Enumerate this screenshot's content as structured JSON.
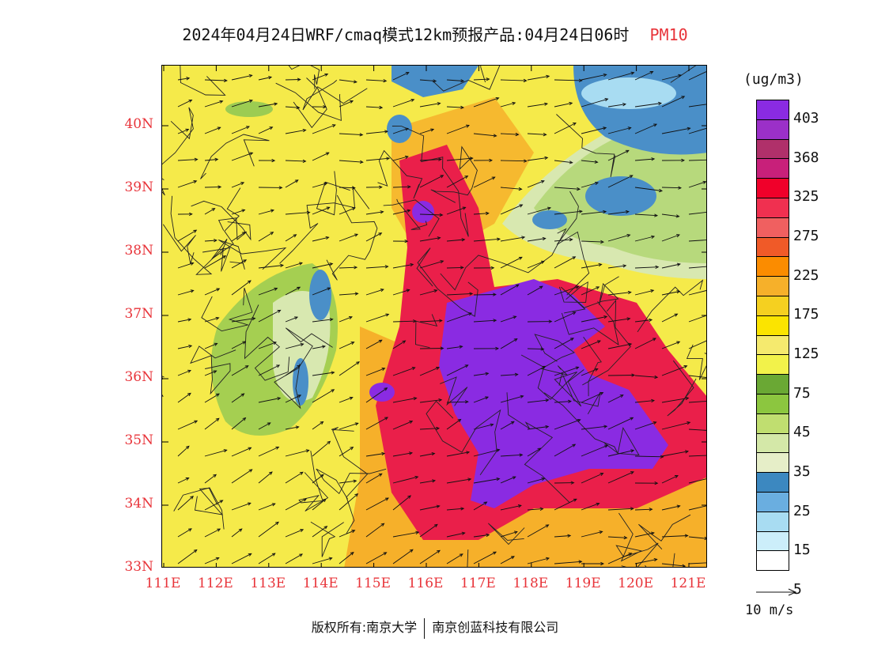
{
  "title": {
    "text": "2024年04月24日WRF/cmaq模式12km预报产品:04月24日06时",
    "pollutant": "PM10",
    "pollutant_color": "#e8343a"
  },
  "map": {
    "lon_labels": [
      "111E",
      "112E",
      "113E",
      "114E",
      "115E",
      "116E",
      "117E",
      "118E",
      "119E",
      "120E",
      "121E"
    ],
    "lat_labels": [
      "40N",
      "39N",
      "38N",
      "37N",
      "36N",
      "35N",
      "34N",
      "33N"
    ],
    "label_color": "#e8343a",
    "colors": {
      "background_level": "#f5ea4a",
      "orange_level": "#f6b02a",
      "red_level": "#ea1f4a",
      "purple_level": "#8a2be2",
      "green_level": "#9ccc52",
      "blue_level": "#4a8fc8",
      "light_blue_level": "#a8dcf2",
      "pale_green_level": "#d8e8b0"
    }
  },
  "legend": {
    "unit": "(ug/m3)",
    "labels": [
      "403",
      "368",
      "325",
      "275",
      "225",
      "175",
      "125",
      "75",
      "45",
      "35",
      "25",
      "15",
      "5"
    ],
    "colors": [
      "#8a2be2",
      "#9b30c8",
      "#b0306a",
      "#c8207a",
      "#f0002a",
      "#f03050",
      "#f06060",
      "#f05a28",
      "#fb8c00",
      "#f6b02a",
      "#f5d020",
      "#fbe400",
      "#f5ea6e",
      "#f2f24a",
      "#6aa834",
      "#8cc63f",
      "#c0de70",
      "#d4e8a8",
      "#e6eec8",
      "#3c88c0",
      "#6aaee0",
      "#a8dcf2",
      "#cceefa",
      "#ffffff"
    ]
  },
  "vector_reference": {
    "label": "10 m/s"
  },
  "footer": {
    "copyright": "版权所有:南京大学",
    "company": "南京创蓝科技有限公司"
  }
}
